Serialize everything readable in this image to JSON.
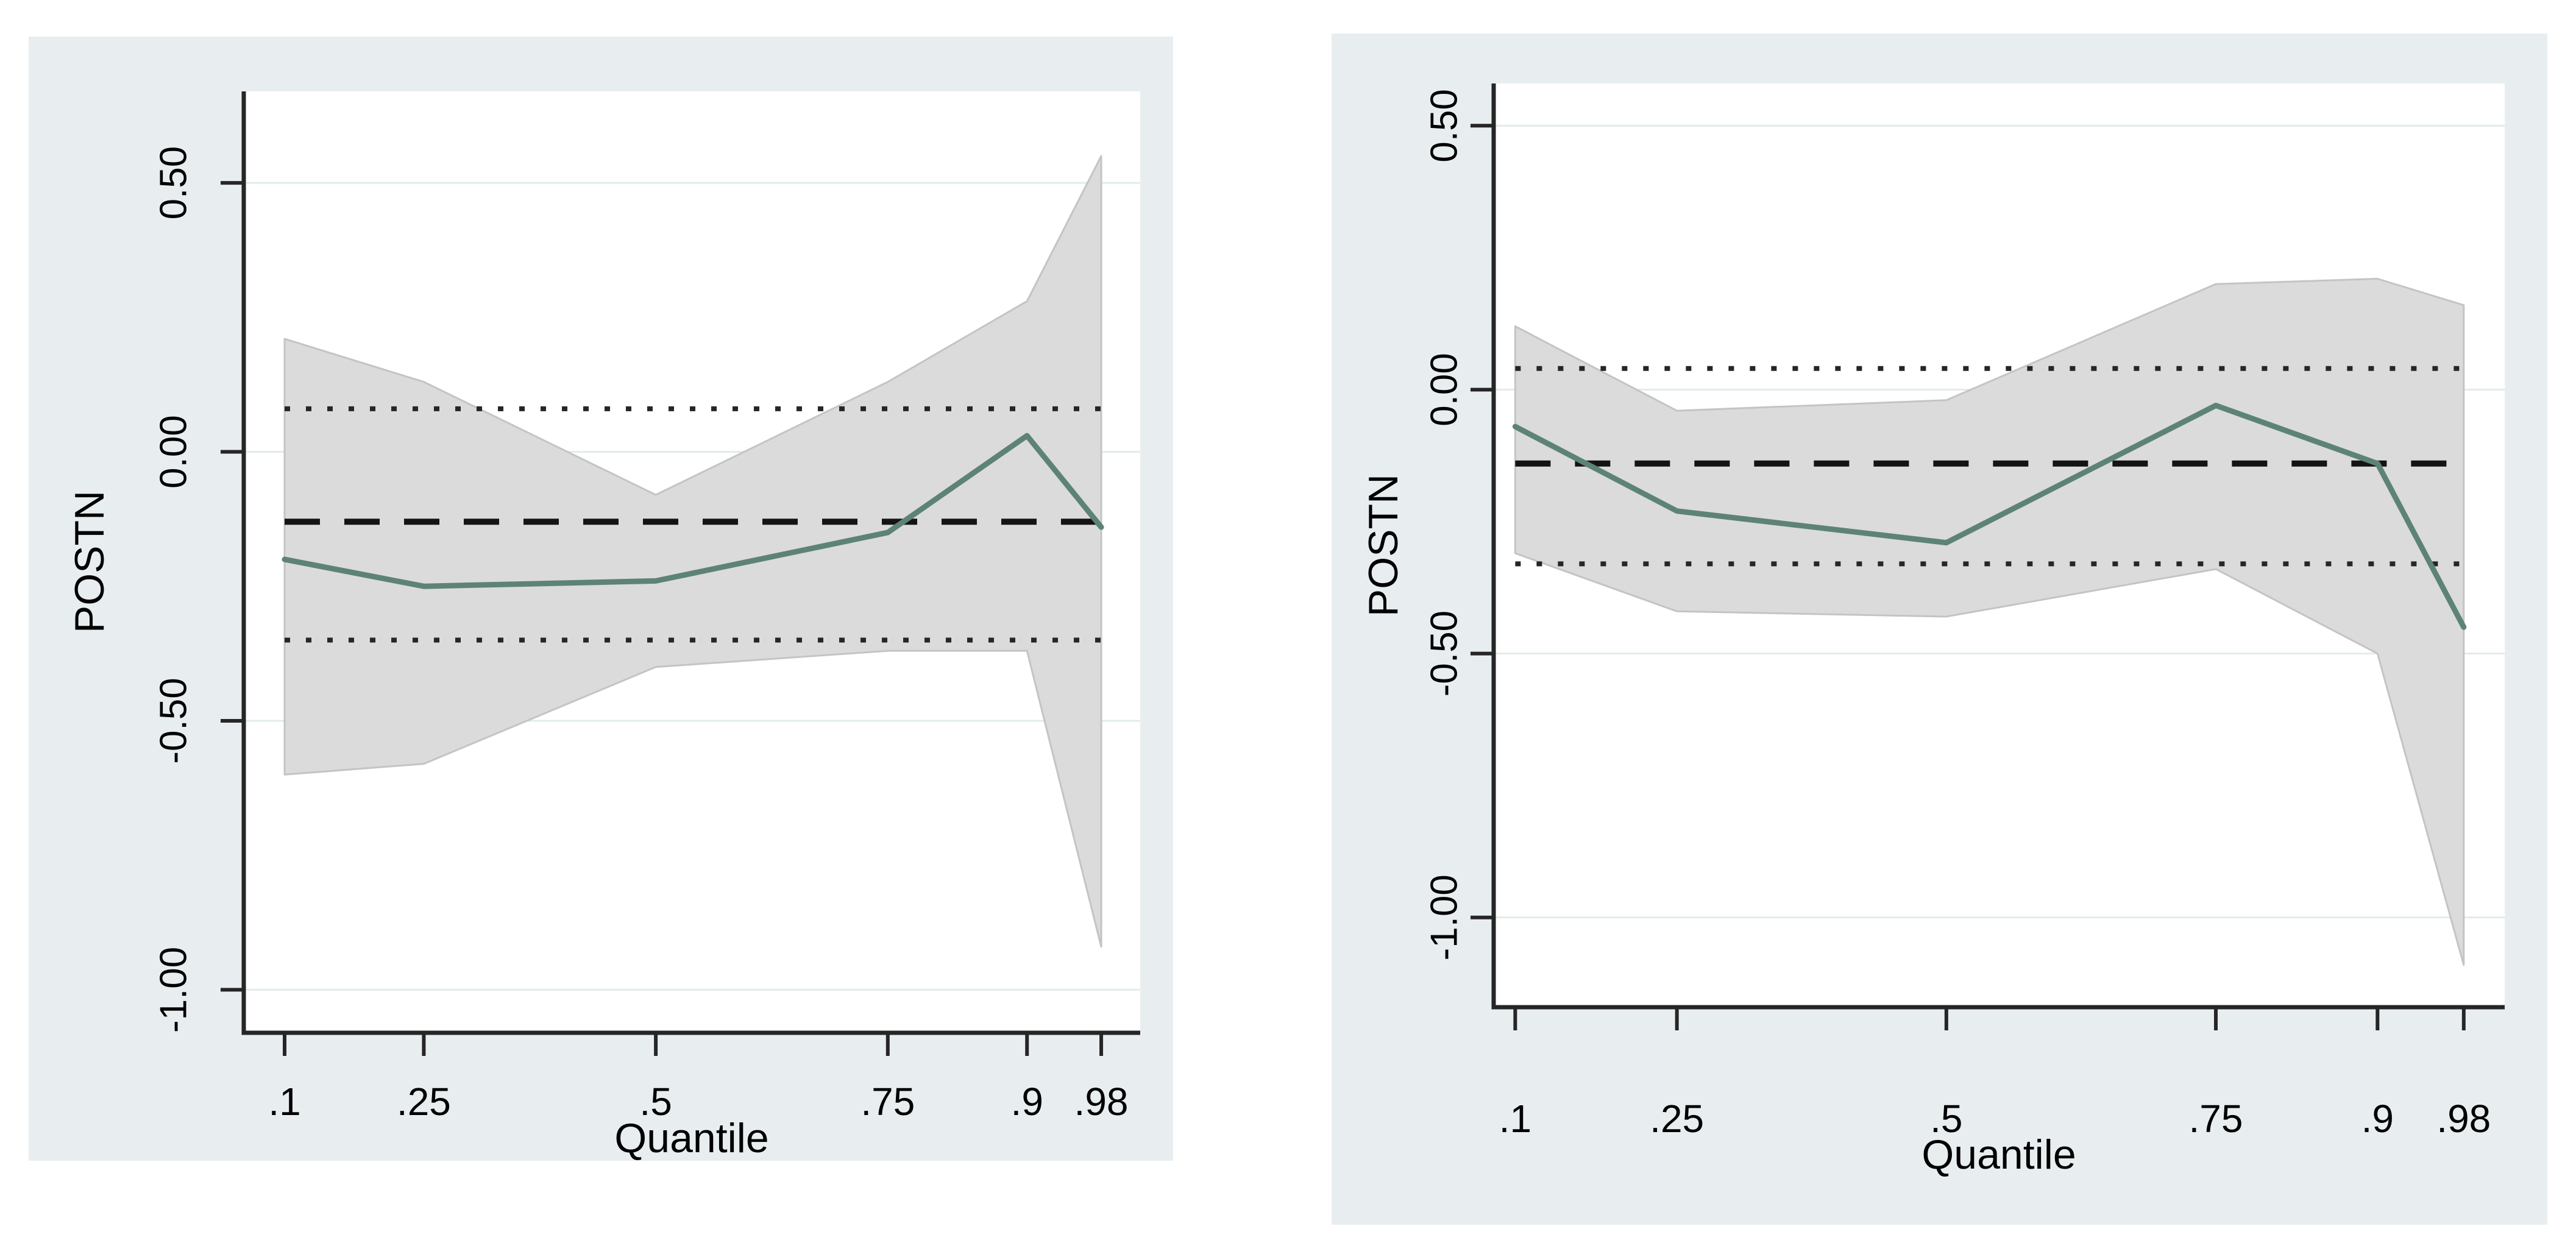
{
  "figure": {
    "description": "Two quantile regression coefficient plots for POSTN across quantiles, with 95% confidence bands, OLS coefficient (dashed) and OLS confidence interval (dotted)."
  },
  "colors": {
    "page_bg": "#ffffff",
    "card_bg": "#e8eef0",
    "plot_bg": "#ffffff",
    "band_fill": "#dbdbdb",
    "band_edge": "#c4c4c4",
    "qr_line": "#5d8374",
    "ols_dashed": "#141414",
    "ols_dotted": "#262626",
    "gridline": "#e2ecea",
    "axis": "#262626",
    "text": "#000000"
  },
  "chart_data": [
    {
      "type": "area",
      "title": "",
      "xlabel": "Quantile",
      "ylabel": "POSTN",
      "x": [
        0.1,
        0.25,
        0.5,
        0.75,
        0.9,
        0.98
      ],
      "x_tick_labels": [
        ".1",
        ".25",
        ".5",
        ".75",
        ".9",
        ".98"
      ],
      "y_ticks": [
        0.5,
        0.0,
        -0.5,
        -1.0
      ],
      "y_tick_labels": [
        "0.50",
        "0.00",
        "-0.50",
        "-1.00"
      ],
      "xlim": [
        0.056,
        1.022
      ],
      "ylim": [
        -1.08,
        0.67
      ],
      "grid": true,
      "legend": false,
      "series": [
        {
          "name": "quantile-coefficient",
          "role": "line",
          "values": [
            -0.2,
            -0.25,
            -0.24,
            -0.15,
            0.03,
            -0.14
          ]
        },
        {
          "name": "ci-upper",
          "role": "band-upper",
          "values": [
            0.21,
            0.13,
            -0.08,
            0.13,
            0.28,
            0.55
          ]
        },
        {
          "name": "ci-lower",
          "role": "band-lower",
          "values": [
            -0.6,
            -0.58,
            -0.4,
            -0.37,
            -0.37,
            -0.92
          ]
        },
        {
          "name": "ols-coefficient",
          "role": "hline-dashed",
          "value": -0.13
        },
        {
          "name": "ols-ci-upper",
          "role": "hline-dotted",
          "value": 0.08
        },
        {
          "name": "ols-ci-lower",
          "role": "hline-dotted",
          "value": -0.35
        }
      ]
    },
    {
      "type": "area",
      "title": "",
      "xlabel": "Quantile",
      "ylabel": "POSTN",
      "x": [
        0.1,
        0.25,
        0.5,
        0.75,
        0.9,
        0.98
      ],
      "x_tick_labels": [
        ".1",
        ".25",
        ".5",
        ".75",
        ".9",
        ".98"
      ],
      "y_ticks": [
        0.5,
        0.0,
        -0.5,
        -1.0
      ],
      "y_tick_labels": [
        "0.50",
        "0.00",
        "-0.50",
        "-1.00"
      ],
      "xlim": [
        0.08,
        1.018
      ],
      "ylim": [
        -1.17,
        0.58
      ],
      "grid": true,
      "legend": false,
      "series": [
        {
          "name": "quantile-coefficient",
          "role": "line",
          "values": [
            -0.07,
            -0.23,
            -0.29,
            -0.03,
            -0.14,
            -0.45
          ]
        },
        {
          "name": "ci-upper",
          "role": "band-upper",
          "values": [
            0.12,
            -0.04,
            -0.02,
            0.2,
            0.21,
            0.16
          ]
        },
        {
          "name": "ci-lower",
          "role": "band-lower",
          "values": [
            -0.31,
            -0.42,
            -0.43,
            -0.34,
            -0.5,
            -1.09
          ]
        },
        {
          "name": "ols-coefficient",
          "role": "hline-dashed",
          "value": -0.14
        },
        {
          "name": "ols-ci-upper",
          "role": "hline-dotted",
          "value": 0.04
        },
        {
          "name": "ols-ci-lower",
          "role": "hline-dotted",
          "value": -0.33
        }
      ]
    }
  ]
}
